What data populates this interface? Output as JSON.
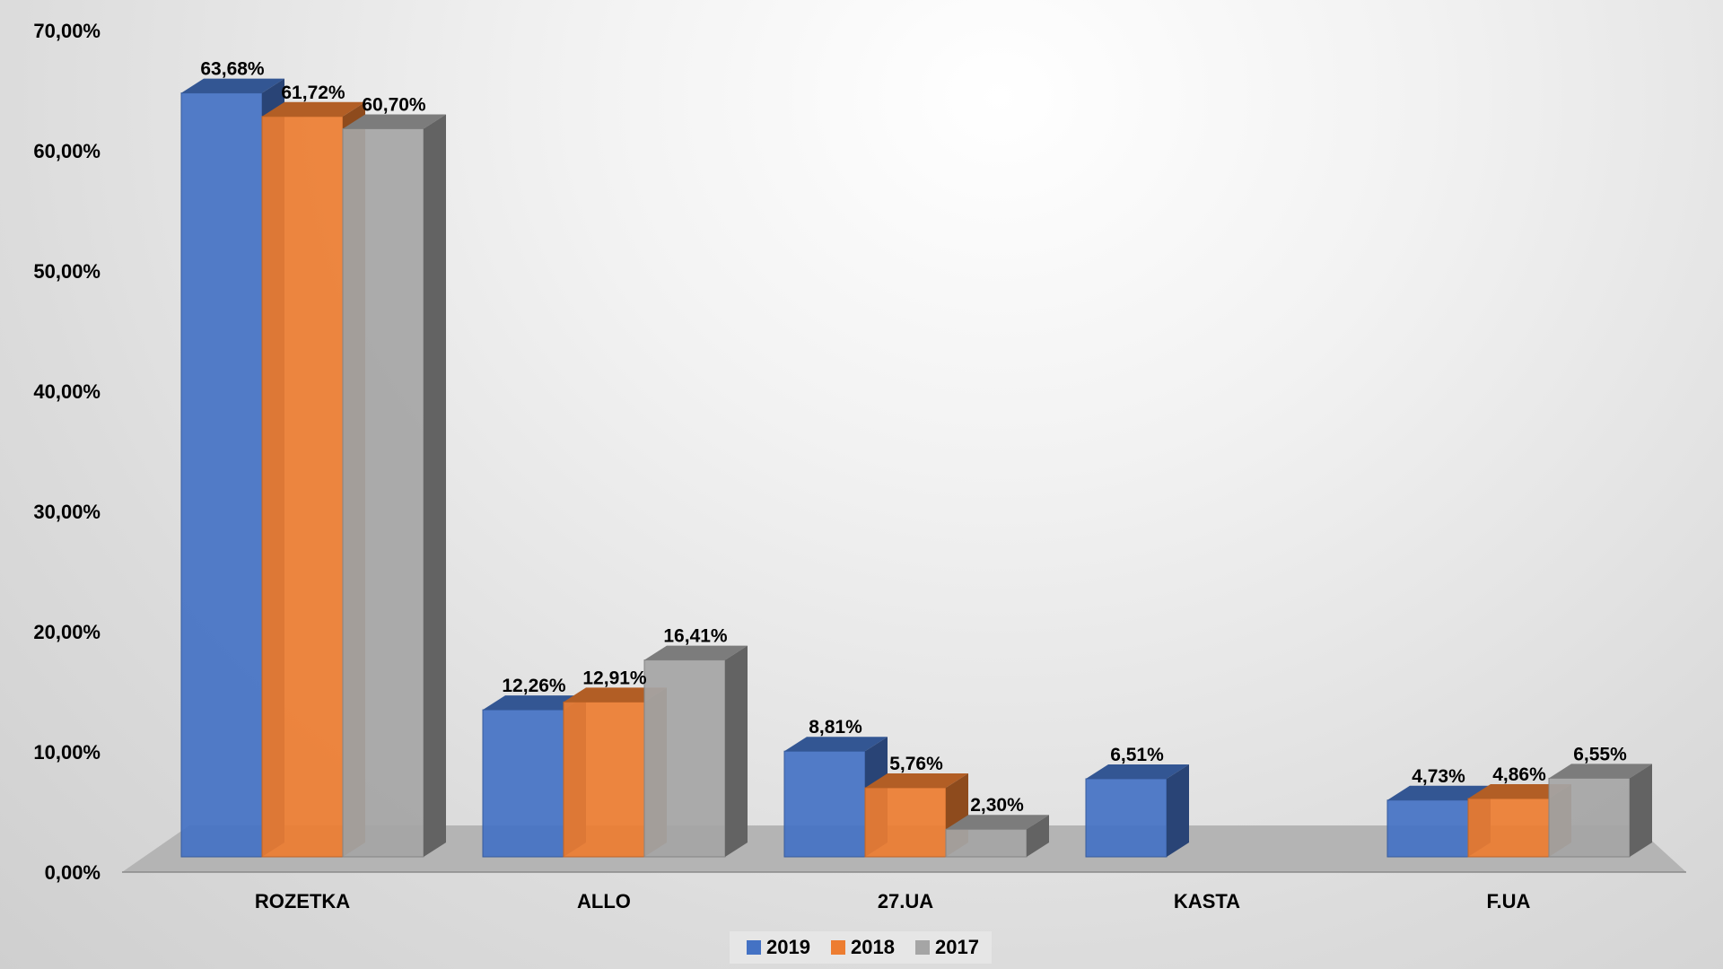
{
  "chart_data": {
    "type": "bar",
    "categories": [
      "ROZETKA",
      "ALLO",
      "27.UA",
      "KASTA",
      "F.UA"
    ],
    "series": [
      {
        "name": "2019",
        "color": "#4472C4",
        "values": [
          63.68,
          12.26,
          8.81,
          6.51,
          4.73
        ],
        "labels": [
          "63,68%",
          "12,26%",
          "8,81%",
          "6,51%",
          "4,73%"
        ]
      },
      {
        "name": "2018",
        "color": "#ED7D31",
        "values": [
          61.72,
          12.91,
          5.76,
          null,
          4.86
        ],
        "labels": [
          "61,72%",
          "12,91%",
          "5,76%",
          "",
          "4,86%"
        ]
      },
      {
        "name": "2017",
        "color": "#A5A5A5",
        "values": [
          60.7,
          16.41,
          2.3,
          null,
          6.55
        ],
        "labels": [
          "60,70%",
          "16,41%",
          "2,30%",
          "",
          "6,55%"
        ]
      }
    ],
    "yticks": [
      "0,00%",
      "10,00%",
      "20,00%",
      "30,00%",
      "40,00%",
      "50,00%",
      "60,00%",
      "70,00%"
    ],
    "ylim": [
      0,
      70
    ],
    "title": "",
    "xlabel": "",
    "ylabel": "",
    "grid": false,
    "legend": "bottom-center"
  }
}
